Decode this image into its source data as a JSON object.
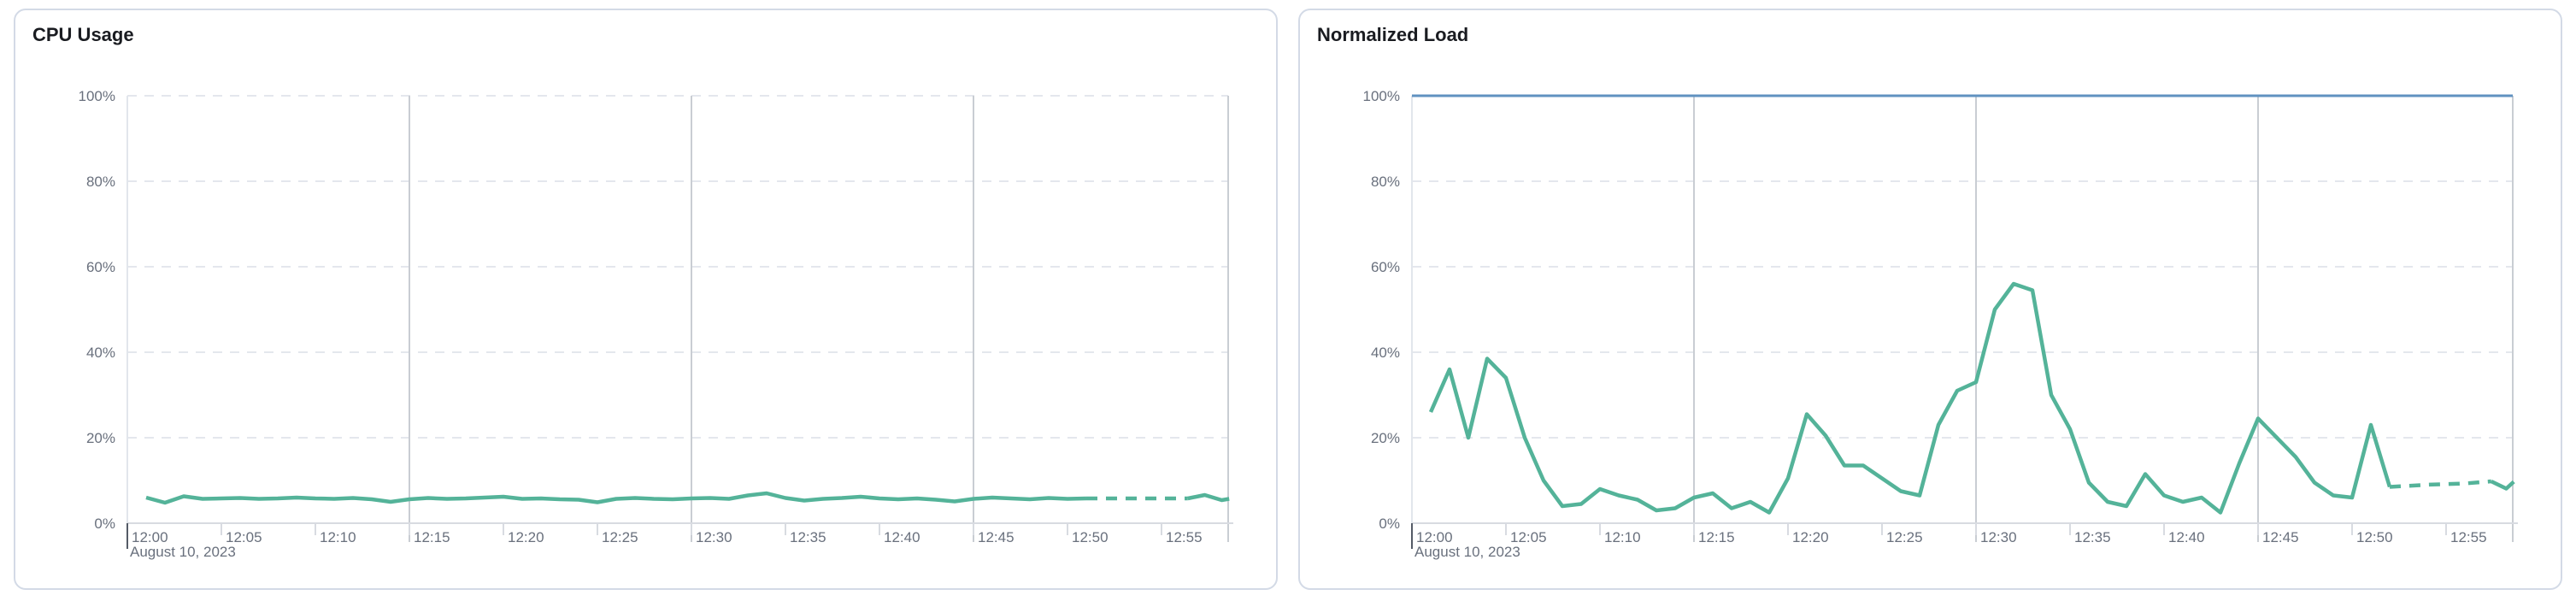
{
  "page": {
    "background": "#ffffff",
    "description": "Monitoring dashboard with two metric line-chart panels"
  },
  "colors": {
    "series_green": "#54B399",
    "threshold_blue": "#6092C0",
    "grid_dashed": "#E4E7ED",
    "grid_solid_vertical": "#C9CDD3",
    "axis_line": "#D8DBE1",
    "plot_left_border": "#E2E6EC",
    "tick_light": "#D8DBE1",
    "tick_origin_dark": "#545B66",
    "tick_label": "#69707D",
    "title_text": "#1A1C21",
    "panel_border": "#D3DAE6"
  },
  "panels": [
    {
      "title": "CPU Usage",
      "date_label": "August 10, 2023"
    },
    {
      "title": "Normalized Load",
      "date_label": "August 10, 2023"
    }
  ],
  "chart_data": [
    {
      "type": "line",
      "title": "CPU Usage",
      "xlabel": "August 10, 2023",
      "ylabel": "",
      "unit": "percent",
      "ylim": [
        0,
        100
      ],
      "ytick_labels_top_down": [
        "100%",
        "80%",
        "60%",
        "40%",
        "20%",
        "0%"
      ],
      "ytick_values_top_down": [
        100,
        80,
        60,
        40,
        20,
        0
      ],
      "xtick_labels": [
        "12:00",
        "12:05",
        "12:10",
        "12:15",
        "12:20",
        "12:25",
        "12:30",
        "12:35",
        "12:40",
        "12:45",
        "12:50",
        "12:55"
      ],
      "xtick_interval_minutes": 5,
      "x_domain_minutes": [
        0,
        58.6
      ],
      "x_gridlines_minutes": [
        15,
        30,
        45
      ],
      "grid": true,
      "legend": "none",
      "threshold": null,
      "series": [
        {
          "name": "cpu-usage",
          "color": "#54B399",
          "segments": [
            {
              "style": "solid",
              "points": [
                [
                  1,
                  6.0
                ],
                [
                  2,
                  4.8
                ],
                [
                  3,
                  6.3
                ],
                [
                  4,
                  5.7
                ],
                [
                  5,
                  5.8
                ],
                [
                  6,
                  5.9
                ],
                [
                  7,
                  5.7
                ],
                [
                  8,
                  5.8
                ],
                [
                  9,
                  6.0
                ],
                [
                  10,
                  5.8
                ],
                [
                  11,
                  5.7
                ],
                [
                  12,
                  5.9
                ],
                [
                  13,
                  5.6
                ],
                [
                  14,
                  5.0
                ],
                [
                  15,
                  5.6
                ],
                [
                  16,
                  5.9
                ],
                [
                  17,
                  5.7
                ],
                [
                  18,
                  5.8
                ],
                [
                  19,
                  6.0
                ],
                [
                  20,
                  6.2
                ],
                [
                  21,
                  5.7
                ],
                [
                  22,
                  5.8
                ],
                [
                  23,
                  5.6
                ],
                [
                  24,
                  5.5
                ],
                [
                  25,
                  4.9
                ],
                [
                  26,
                  5.7
                ],
                [
                  27,
                  5.9
                ],
                [
                  28,
                  5.7
                ],
                [
                  29,
                  5.6
                ],
                [
                  30,
                  5.8
                ],
                [
                  31,
                  5.9
                ],
                [
                  32,
                  5.7
                ],
                [
                  33,
                  6.5
                ],
                [
                  34,
                  7.0
                ],
                [
                  35,
                  5.9
                ],
                [
                  36,
                  5.3
                ],
                [
                  37,
                  5.7
                ],
                [
                  38,
                  5.9
                ],
                [
                  39,
                  6.2
                ],
                [
                  40,
                  5.8
                ],
                [
                  41,
                  5.6
                ],
                [
                  42,
                  5.8
                ],
                [
                  43,
                  5.5
                ],
                [
                  44,
                  5.1
                ],
                [
                  45,
                  5.7
                ],
                [
                  46,
                  6.0
                ],
                [
                  47,
                  5.8
                ],
                [
                  48,
                  5.6
                ],
                [
                  49,
                  5.9
                ],
                [
                  50,
                  5.7
                ],
                [
                  51,
                  5.8
                ]
              ]
            },
            {
              "style": "dashed",
              "points": [
                [
                  51,
                  5.8
                ],
                [
                  53,
                  5.8
                ],
                [
                  55,
                  5.8
                ],
                [
                  56.4,
                  5.8
                ]
              ]
            },
            {
              "style": "solid",
              "points": [
                [
                  56.4,
                  5.8
                ],
                [
                  57.3,
                  6.6
                ],
                [
                  58.2,
                  5.4
                ],
                [
                  58.6,
                  5.7
                ]
              ]
            }
          ]
        }
      ]
    },
    {
      "type": "line",
      "title": "Normalized Load",
      "xlabel": "August 10, 2023",
      "ylabel": "",
      "unit": "percent",
      "ylim": [
        0,
        100
      ],
      "ytick_labels_top_down": [
        "100%",
        "80%",
        "60%",
        "40%",
        "20%",
        "0%"
      ],
      "ytick_values_top_down": [
        100,
        80,
        60,
        40,
        20,
        0
      ],
      "xtick_labels": [
        "12:00",
        "12:05",
        "12:10",
        "12:15",
        "12:20",
        "12:25",
        "12:30",
        "12:35",
        "12:40",
        "12:45",
        "12:50",
        "12:55"
      ],
      "xtick_interval_minutes": 5,
      "x_domain_minutes": [
        0,
        58.6
      ],
      "x_gridlines_minutes": [
        15,
        30,
        45
      ],
      "grid": true,
      "legend": "none",
      "threshold": {
        "name": "load-limit-line",
        "value": 100,
        "color": "#6092C0"
      },
      "series": [
        {
          "name": "normalized-load",
          "color": "#54B399",
          "segments": [
            {
              "style": "solid",
              "points": [
                [
                  1,
                  26
                ],
                [
                  2,
                  36
                ],
                [
                  3,
                  20
                ],
                [
                  4,
                  38.5
                ],
                [
                  5,
                  34
                ],
                [
                  6,
                  20
                ],
                [
                  7,
                  10
                ],
                [
                  8,
                  4
                ],
                [
                  9,
                  4.5
                ],
                [
                  10,
                  8
                ],
                [
                  11,
                  6.5
                ],
                [
                  12,
                  5.5
                ],
                [
                  13,
                  3
                ],
                [
                  14,
                  3.5
                ],
                [
                  15,
                  6
                ],
                [
                  16,
                  7
                ],
                [
                  17,
                  3.5
                ],
                [
                  18,
                  5
                ],
                [
                  19,
                  2.5
                ],
                [
                  20,
                  10.5
                ],
                [
                  21,
                  25.5
                ],
                [
                  22,
                  20.5
                ],
                [
                  23,
                  13.5
                ],
                [
                  24,
                  13.5
                ],
                [
                  25,
                  10.5
                ],
                [
                  26,
                  7.5
                ],
                [
                  27,
                  6.5
                ],
                [
                  28,
                  23
                ],
                [
                  29,
                  31
                ],
                [
                  30,
                  33
                ],
                [
                  31,
                  50
                ],
                [
                  32,
                  56
                ],
                [
                  33,
                  54.5
                ],
                [
                  34,
                  30
                ],
                [
                  35,
                  22
                ],
                [
                  36,
                  9.5
                ],
                [
                  37,
                  5
                ],
                [
                  38,
                  4
                ],
                [
                  39,
                  11.5
                ],
                [
                  40,
                  6.5
                ],
                [
                  41,
                  5
                ],
                [
                  42,
                  6
                ],
                [
                  43,
                  2.5
                ],
                [
                  44,
                  14
                ],
                [
                  45,
                  24.5
                ],
                [
                  46,
                  20
                ],
                [
                  47,
                  15.5
                ],
                [
                  48,
                  9.5
                ],
                [
                  49,
                  6.5
                ],
                [
                  50,
                  6
                ],
                [
                  51,
                  23
                ],
                [
                  52,
                  8.5
                ]
              ]
            },
            {
              "style": "dashed",
              "points": [
                [
                  52,
                  8.5
                ],
                [
                  54,
                  9.0
                ],
                [
                  56,
                  9.3
                ],
                [
                  57.4,
                  9.8
                ]
              ]
            },
            {
              "style": "solid",
              "points": [
                [
                  57.4,
                  9.8
                ],
                [
                  58.2,
                  8.1
                ],
                [
                  58.6,
                  9.7
                ]
              ]
            }
          ]
        }
      ]
    }
  ]
}
